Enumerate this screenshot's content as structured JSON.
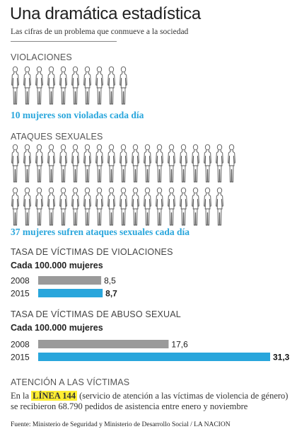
{
  "header": {
    "title": "Una dramática estadística",
    "subtitle": "Las cifras de un problema que conmueve a la sociedad"
  },
  "violaciones": {
    "label": "VIOLACIONES",
    "count": 10,
    "caption": "10 mujeres son violadas cada día"
  },
  "ataques": {
    "label": "ATAQUES SEXUALES",
    "count": 37,
    "caption": "37 mujeres sufren ataques sexuales cada día"
  },
  "colors": {
    "blue": "#29a6dc",
    "gray": "#9a9a9a",
    "highlight": "#ffee33"
  },
  "chart_data": [
    {
      "type": "bar",
      "title": "TASA DE VÍCTIMAS DE VIOLACIONES",
      "subtitle": "Cada 100.000 mujeres",
      "categories": [
        "2008",
        "2015"
      ],
      "values": [
        8.5,
        8.7
      ],
      "value_labels": [
        "8,5",
        "8,7"
      ],
      "colors": [
        "#9a9a9a",
        "#29a6dc"
      ],
      "xlim": [
        0,
        31.3
      ]
    },
    {
      "type": "bar",
      "title": "TASA DE VÍCTIMAS DE ABUSO SEXUAL",
      "subtitle": "Cada 100.000 mujeres",
      "categories": [
        "2008",
        "2015"
      ],
      "values": [
        17.6,
        31.3
      ],
      "value_labels": [
        "17,6",
        "31,3"
      ],
      "colors": [
        "#9a9a9a",
        "#29a6dc"
      ],
      "xlim": [
        0,
        31.3
      ]
    }
  ],
  "atencion": {
    "label": "ATENCIÓN A LAS VÍCTIMAS",
    "text_before": "En la",
    "highlight": "LÍNEA 144",
    "text_after": "(servicio de atención a las víctimas de violencia de género) se recibieron 68.790 pedidos de asistencia entre enero y noviembre"
  },
  "source": "Fuente: Ministerio de Seguridad y Ministerio de Desarrollo Social / LA NACION"
}
